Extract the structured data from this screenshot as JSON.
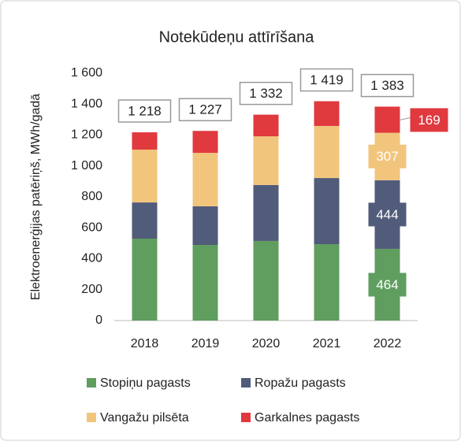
{
  "chart_data": {
    "type": "stacked_bar",
    "title": "Notekūdeņu attīrīšana",
    "y_label": "Elektroenerģijas patēriņš, MWh/gadā",
    "categories": [
      "2018",
      "2019",
      "2020",
      "2021",
      "2022"
    ],
    "series": [
      {
        "name": "Stopiņu pagasts",
        "color": "#5f9e5f",
        "values": [
          530,
          489,
          515,
          494,
          464
        ]
      },
      {
        "name": "Ropažu pagasts",
        "color": "#515b7a",
        "values": [
          234,
          250,
          362,
          428,
          444
        ]
      },
      {
        "name": "Vangažu pilsēta",
        "color": "#f2c57d",
        "values": [
          342,
          346,
          315,
          337,
          307
        ]
      },
      {
        "name": "Garkalnes pagasts",
        "color": "#e0393e",
        "values": [
          112,
          142,
          140,
          160,
          169
        ]
      }
    ],
    "value_label_index": 4,
    "totals": {
      "values": [
        1218,
        1227,
        1332,
        1419,
        1383
      ],
      "value_labels": [
        "1 218",
        "1 227",
        "1 332",
        "1 419",
        "1 383"
      ]
    },
    "ylim": [
      0,
      1600
    ],
    "yticks": [
      0,
      200,
      400,
      600,
      800,
      {
        "value": 1000,
        "label": "1 000"
      },
      {
        "value": 1200,
        "label": "1 200"
      },
      {
        "value": 1400,
        "label": "1 400"
      },
      {
        "value": 1600,
        "label": "1 600"
      }
    ],
    "grid": false,
    "legend": "bottom"
  }
}
